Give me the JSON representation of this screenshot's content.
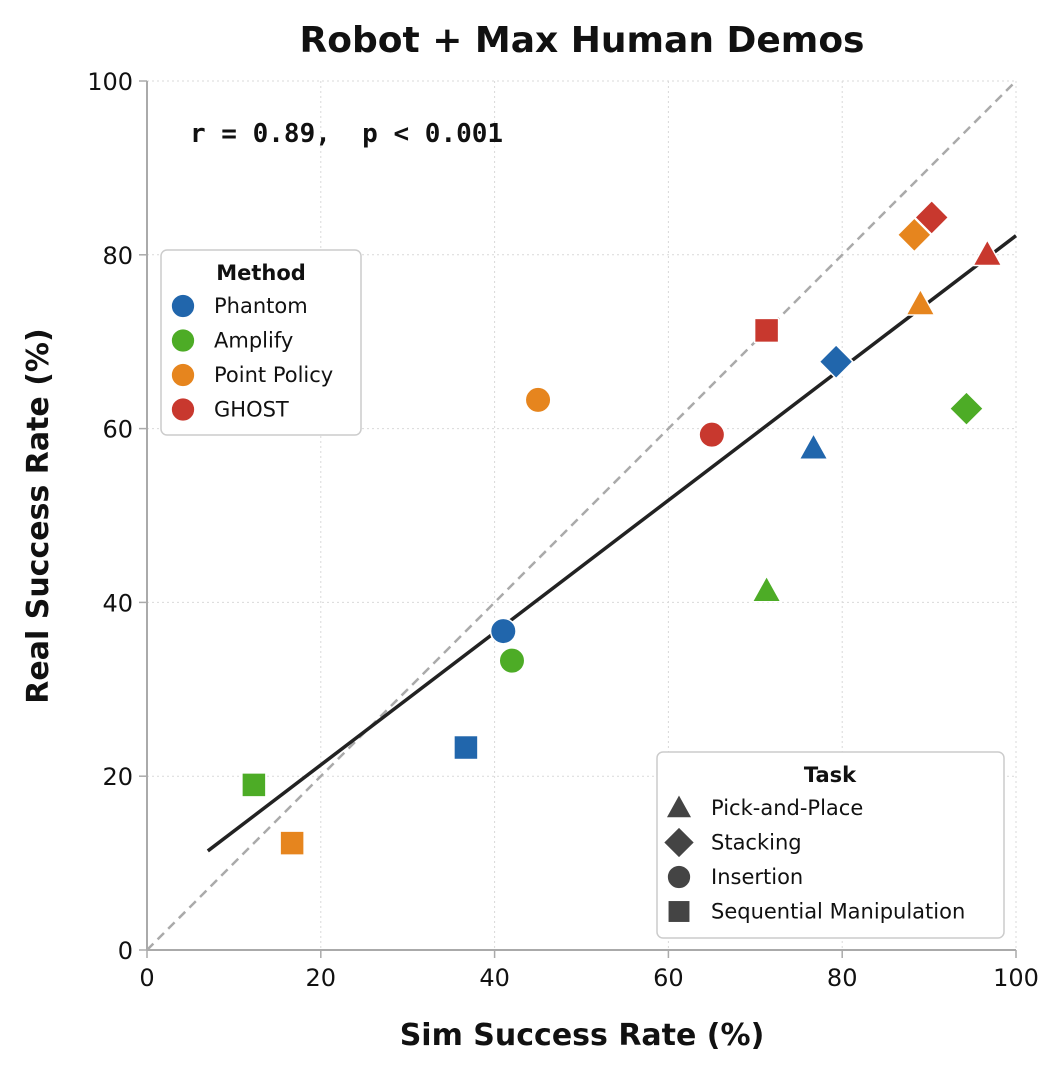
{
  "chart_data": {
    "type": "scatter",
    "title": "Robot + Max Human Demos",
    "xlabel": "Sim Success Rate (%)",
    "ylabel": "Real Success Rate (%)",
    "xlim": [
      0,
      100
    ],
    "ylim": [
      0,
      100
    ],
    "xticks": [
      "0",
      "20",
      "40",
      "60",
      "80",
      "100"
    ],
    "yticks": [
      "0",
      "20",
      "40",
      "60",
      "80",
      "100"
    ],
    "grid": true,
    "annotation": "r = 0.89,  p < 0.001",
    "identity_line": {
      "style": "dashed",
      "color": "#aaaaaa",
      "from": [
        0,
        0
      ],
      "to": [
        100,
        100
      ]
    },
    "fit_line": {
      "style": "solid",
      "color": "#222222",
      "from": [
        7,
        11.4
      ],
      "to": [
        100,
        82.2
      ]
    },
    "methods": [
      {
        "name": "Phantom",
        "color": "#2166ac"
      },
      {
        "name": "Amplify",
        "color": "#4dac26"
      },
      {
        "name": "Point Policy",
        "color": "#e6851e"
      },
      {
        "name": "GHOST",
        "color": "#c8382e"
      }
    ],
    "tasks": [
      {
        "name": "Pick-and-Place",
        "marker": "triangle"
      },
      {
        "name": "Stacking",
        "marker": "diamond"
      },
      {
        "name": "Insertion",
        "marker": "circle"
      },
      {
        "name": "Sequential Manipulation",
        "marker": "square"
      }
    ],
    "points": [
      {
        "method": "Phantom",
        "task": "Pick-and-Place",
        "x": 76.7,
        "y": 57.7
      },
      {
        "method": "Phantom",
        "task": "Stacking",
        "x": 79.3,
        "y": 67.7
      },
      {
        "method": "Phantom",
        "task": "Insertion",
        "x": 41.0,
        "y": 36.7
      },
      {
        "method": "Phantom",
        "task": "Sequential Manipulation",
        "x": 36.7,
        "y": 23.3
      },
      {
        "method": "Amplify",
        "task": "Pick-and-Place",
        "x": 71.3,
        "y": 41.3
      },
      {
        "method": "Amplify",
        "task": "Stacking",
        "x": 94.3,
        "y": 62.3
      },
      {
        "method": "Amplify",
        "task": "Insertion",
        "x": 42.0,
        "y": 33.3
      },
      {
        "method": "Amplify",
        "task": "Sequential Manipulation",
        "x": 12.3,
        "y": 19.0
      },
      {
        "method": "Point Policy",
        "task": "Pick-and-Place",
        "x": 89.0,
        "y": 74.3
      },
      {
        "method": "Point Policy",
        "task": "Stacking",
        "x": 88.3,
        "y": 82.3
      },
      {
        "method": "Point Policy",
        "task": "Insertion",
        "x": 45.0,
        "y": 63.3
      },
      {
        "method": "Point Policy",
        "task": "Sequential Manipulation",
        "x": 16.7,
        "y": 12.3
      },
      {
        "method": "GHOST",
        "task": "Pick-and-Place",
        "x": 96.7,
        "y": 80.0
      },
      {
        "method": "GHOST",
        "task": "Stacking",
        "x": 90.3,
        "y": 84.3
      },
      {
        "method": "GHOST",
        "task": "Insertion",
        "x": 65.0,
        "y": 59.3
      },
      {
        "method": "GHOST",
        "task": "Sequential Manipulation",
        "x": 71.3,
        "y": 71.3
      }
    ],
    "legend_method": {
      "title": "Method",
      "placement": "upper-left"
    },
    "legend_task": {
      "title": "Task",
      "placement": "lower-right",
      "color": "#444444"
    }
  }
}
